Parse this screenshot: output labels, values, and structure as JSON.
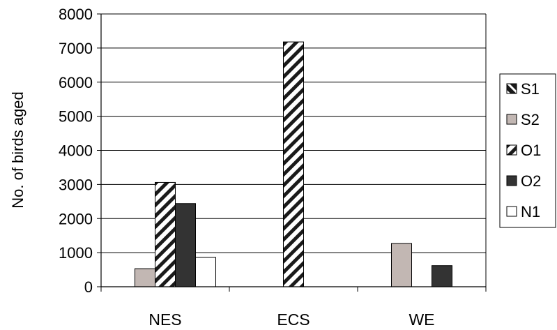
{
  "chart_data": {
    "type": "bar",
    "title": "",
    "xlabel": "",
    "ylabel": "No. of birds aged",
    "ylim": [
      0,
      8000
    ],
    "yticks": [
      0,
      1000,
      2000,
      3000,
      4000,
      5000,
      6000,
      7000,
      8000
    ],
    "grid": true,
    "legend_position": "right",
    "categories": [
      "NES",
      "ECS",
      "WE"
    ],
    "series": [
      {
        "name": "S1",
        "values": [
          0,
          0,
          0
        ],
        "fill": "diag-bold"
      },
      {
        "name": "S2",
        "values": [
          530,
          0,
          1270
        ],
        "fill": "#c2b7b3"
      },
      {
        "name": "O1",
        "values": [
          3060,
          7180,
          0
        ],
        "fill": "diag-stripe"
      },
      {
        "name": "O2",
        "values": [
          2440,
          0,
          620
        ],
        "fill": "#333333"
      },
      {
        "name": "N1",
        "values": [
          860,
          0,
          0
        ],
        "fill": "#ffffff"
      }
    ]
  }
}
